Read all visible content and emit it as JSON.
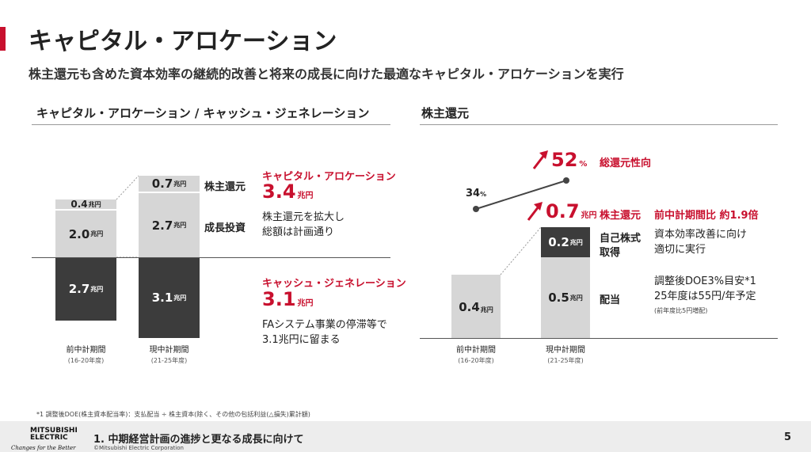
{
  "page": {
    "title": "キャピタル・アロケーション",
    "subtitle": "株主還元も含めた資本効率の継続的改善と将来の成長に向けた最適なキャピタル・アロケーションを実行",
    "page_number": "5",
    "footnote": "*1 調整後DOE(株主資本配当率)：支払配当 ÷ 株主資本(除く、その他の包括利益(△損失)累計額)",
    "footer_text": "1. 中期経営計画の進捗と更なる成長に向けて",
    "copyright": "©Mitsubishi Electric Corporation",
    "logo_line1": "MITSUBISHI",
    "logo_line2": "ELECTRIC",
    "tagline": "Changes for the Better",
    "colors": {
      "accent": "#c8102e",
      "dark_bar": "#3c3c3c",
      "light_bar": "#d6d6d6"
    }
  },
  "left": {
    "section_title": "キャピタル・アロケーション / キャッシュ・ジェネレーション",
    "unit": "兆円",
    "prev_period": {
      "label": "前中計期間",
      "years": "(16-20年度)",
      "shareholder_return": "0.4",
      "growth_investment": "2.0",
      "cash_generation": "2.7"
    },
    "curr_period": {
      "label": "現中計期間",
      "years": "(21-25年度)",
      "shareholder_return": "0.7",
      "growth_investment": "2.7",
      "cash_generation": "3.1"
    },
    "legend_shareholder_return": "株主還元",
    "legend_growth_investment": "成長投資",
    "allocation_title": "キャピタル・アロケーション",
    "allocation_value": "3.4",
    "allocation_desc_1": "株主還元を拡大し",
    "allocation_desc_2": "総額は計画通り",
    "generation_title": "キャッシュ・ジェネレーション",
    "generation_value": "3.1",
    "generation_desc_1": "FAシステム事業の停滞等で",
    "generation_desc_2": "3.1兆円に留まる"
  },
  "right": {
    "section_title": "株主還元",
    "unit": "兆円",
    "payout_prev": "34",
    "payout_curr": "52",
    "payout_unit": "%",
    "payout_label": "総還元性向",
    "total_return_value": "0.7",
    "total_return_label": "株主還元",
    "total_return_comparison": "前中計期間比 約1.9倍",
    "prev_period": {
      "label": "前中計期間",
      "years": "(16-20年度)",
      "value": "0.4"
    },
    "curr_period": {
      "label": "現中計期間",
      "years": "(21-25年度)",
      "buyback": "0.2",
      "dividend": "0.5"
    },
    "buyback_label_1": "自己株式",
    "buyback_label_2": "取得",
    "buyback_desc_1": "資本効率改善に向け",
    "buyback_desc_2": "適切に実行",
    "dividend_label": "配当",
    "dividend_desc_1": "調整後DOE3%目安*1",
    "dividend_desc_2": "25年度は55円/年予定",
    "dividend_desc_3": "(前年度比5円増配)"
  }
}
